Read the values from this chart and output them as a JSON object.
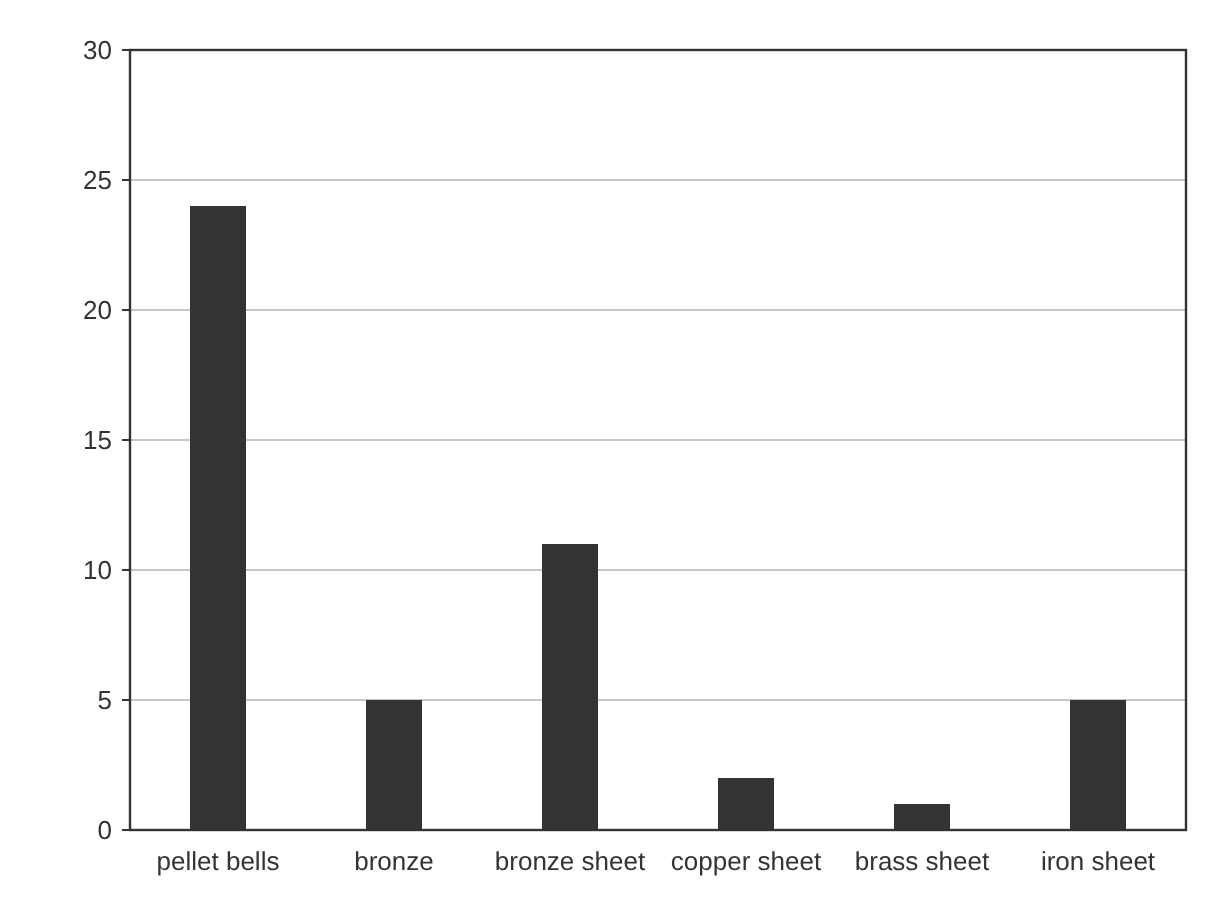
{
  "chart_data": {
    "type": "bar",
    "categories": [
      "pellet bells",
      "bronze",
      "bronze sheet",
      "copper sheet",
      "brass sheet",
      "iron sheet"
    ],
    "values": [
      24,
      5,
      11,
      2,
      1,
      5
    ],
    "color": "#333333",
    "ylim": [
      0,
      30
    ],
    "yticks": [
      0,
      5,
      10,
      15,
      20,
      25,
      30
    ],
    "grid": "y"
  }
}
